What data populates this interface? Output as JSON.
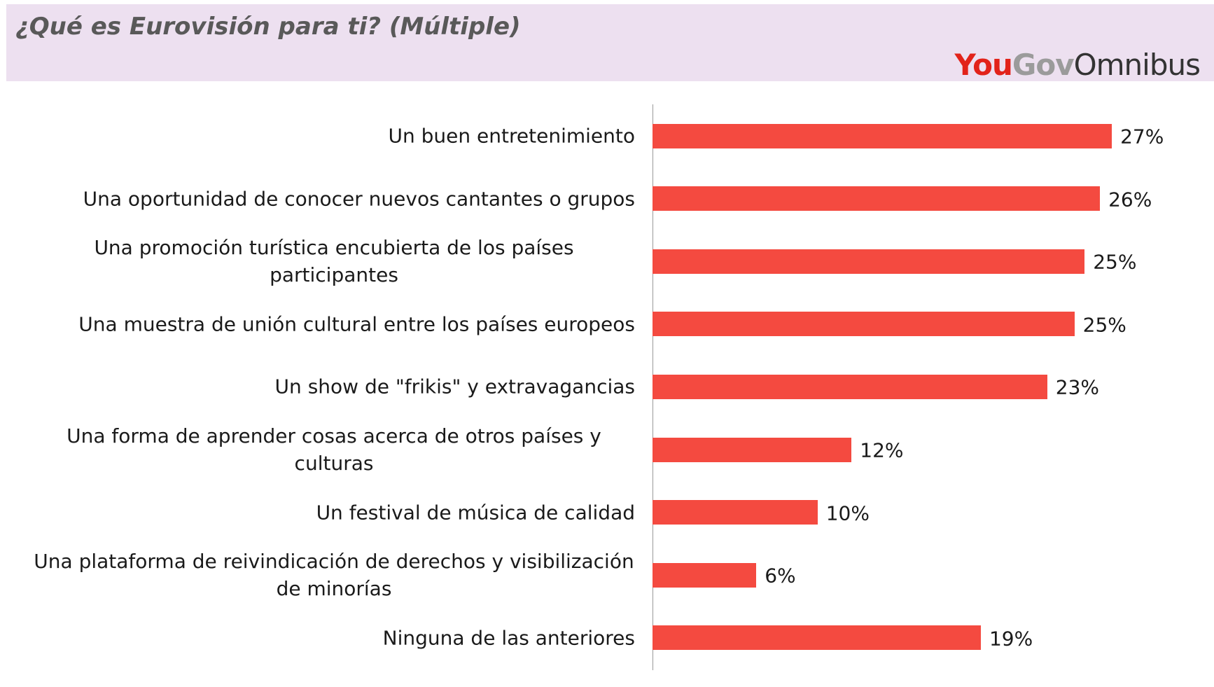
{
  "chart_data": {
    "type": "bar",
    "title": "¿Qué es Eurovisión para ti? (Múltiple)",
    "brand": [
      "You",
      "Gov",
      "Omnibus"
    ],
    "brand_colors": [
      "#e2231a",
      "#9b9b9b",
      "#333333"
    ],
    "categories": [
      "Un buen entretenimiento",
      "Una oportunidad de conocer nuevos cantantes o grupos",
      "Una promoción turística encubierta de los países participantes",
      "Una muestra de unión cultural entre los países europeos",
      "Un show de \"frikis\" y extravagancias",
      "Una forma de aprender cosas acerca de otros países y culturas",
      "Un festival de música de calidad",
      "Una plataforma de reivindicación de derechos y visibilización de minorías",
      "Ninguna de las anteriores"
    ],
    "values": [
      27.0,
      26.3,
      25.4,
      24.8,
      23.2,
      11.7,
      9.7,
      6.1,
      19.3
    ],
    "value_labels": [
      "27%",
      "26%",
      "25%",
      "25%",
      "23%",
      "12%",
      "10%",
      "6%",
      "19%"
    ],
    "color": "#f44a40"
  }
}
